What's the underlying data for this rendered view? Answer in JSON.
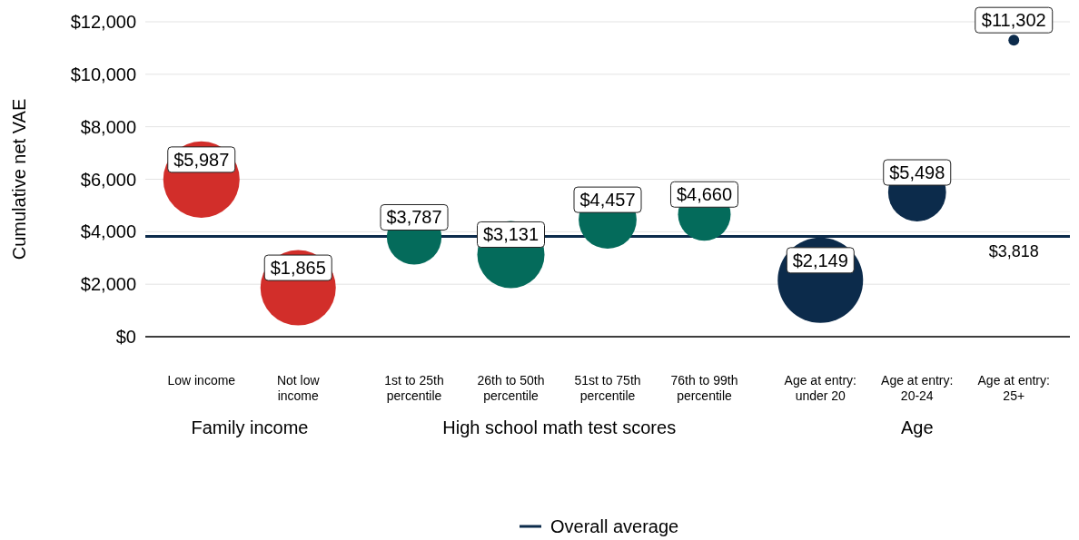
{
  "chart_data": {
    "type": "bubble",
    "ylabel": "Cumulative net VAE",
    "categories": [
      "Low income",
      "Not low income",
      "1st to 25th percentile",
      "26th to 50th percentile",
      "51st to 75th percentile",
      "76th to 99th percentile",
      "Age at entry: under 20",
      "Age at entry: 20-24",
      "Age at entry: 25+"
    ],
    "series": [
      {
        "values": [
          5987,
          1865,
          3787,
          3131,
          4457,
          4660,
          2149,
          5498,
          11302
        ],
        "sizes": [
          0.8,
          0.78,
          0.41,
          0.62,
          0.46,
          0.38,
          1,
          0.46,
          0.016
        ],
        "colors": [
          "#d22e2a",
          "#d22e2a",
          "#046b5b",
          "#046b5b",
          "#046b5b",
          "#046b5b",
          "#0c2b4b",
          "#0c2b4b",
          "#0c2b4b"
        ],
        "value_labels": [
          "$5,987",
          "$1,865",
          "$3,787",
          "$3,131",
          "$4,457",
          "$4,660",
          "$2,149",
          "$5,498",
          "$11,302"
        ]
      }
    ],
    "ref_lines": [
      {
        "axis": "y",
        "value": 3818,
        "label": "Overall average",
        "color": "#0c2b4b"
      }
    ],
    "ylim": [
      0,
      12000
    ],
    "yticks": [
      {
        "value": 0,
        "label": "$0"
      },
      {
        "value": 2000,
        "label": "$2,000"
      },
      {
        "value": 4000,
        "label": "$4,000"
      },
      {
        "value": 6000,
        "label": "$6,000"
      },
      {
        "value": 8000,
        "label": "$8,000"
      },
      {
        "value": 10000,
        "label": "$10,000"
      },
      {
        "value": 12000,
        "label": "$12,000"
      }
    ],
    "grid": "y",
    "legend": "bottom",
    "annotations": [
      "Family income",
      "High school math test scores",
      "Age",
      {
        "text": "$3,818",
        "x": "Age at entry: 25+",
        "y": 3818
      }
    ]
  }
}
